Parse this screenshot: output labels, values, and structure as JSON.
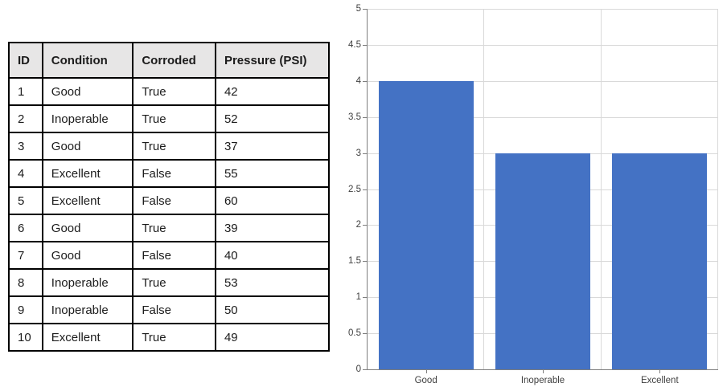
{
  "table": {
    "headers": [
      "ID",
      "Condition",
      "Corroded",
      "Pressure (PSI)"
    ],
    "rows": [
      [
        "1",
        "Good",
        "True",
        "42"
      ],
      [
        "2",
        "Inoperable",
        "True",
        "52"
      ],
      [
        "3",
        "Good",
        "True",
        "37"
      ],
      [
        "4",
        "Excellent",
        "False",
        "55"
      ],
      [
        "5",
        "Excellent",
        "False",
        "60"
      ],
      [
        "6",
        "Good",
        "True",
        "39"
      ],
      [
        "7",
        "Good",
        "False",
        "40"
      ],
      [
        "8",
        "Inoperable",
        "True",
        "53"
      ],
      [
        "9",
        "Inoperable",
        "False",
        "50"
      ],
      [
        "10",
        "Excellent",
        "True",
        "49"
      ]
    ],
    "header_bg": "#e7e6e6",
    "border_color": "#000000"
  },
  "chart_data": {
    "type": "bar",
    "categories": [
      "Good",
      "Inoperable",
      "Excellent"
    ],
    "values": [
      4,
      3,
      3
    ],
    "title": "",
    "xlabel": "",
    "ylabel": "",
    "ylim": [
      0,
      5
    ],
    "ytick_step": 0.5,
    "yticks_top_to_bottom": [
      "5",
      "4.5",
      "4",
      "3.5",
      "3",
      "2.5",
      "2",
      "1.5",
      "1",
      "0.5",
      "0"
    ],
    "grid": true,
    "legend": "none",
    "bar_color": "#4472C4",
    "gridline_color": "#d9d9d9",
    "axis_color": "#7f7f7f",
    "tick_label_color": "#404040"
  }
}
